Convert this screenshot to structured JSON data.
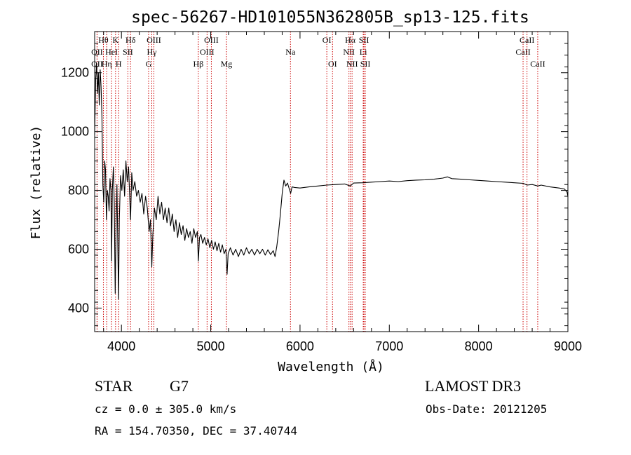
{
  "chart_data": {
    "type": "line",
    "title": "spec-56267-HD101055N362805B_sp13-125.fits",
    "xlabel": "Wavelength (Å)",
    "ylabel": "Flux (relative)",
    "xlim": [
      3700,
      9000
    ],
    "ylim": [
      320,
      1340
    ],
    "x_ticks": [
      4000,
      5000,
      6000,
      7000,
      8000,
      9000
    ],
    "y_ticks": [
      400,
      600,
      800,
      1000,
      1200
    ],
    "grid": false,
    "line_color": "#000000",
    "marker_color": "#cc0000",
    "series": [
      {
        "points": [
          [
            3700,
            990
          ],
          [
            3712,
            1180
          ],
          [
            3722,
            1230
          ],
          [
            3732,
            1130
          ],
          [
            3742,
            1200
          ],
          [
            3752,
            1090
          ],
          [
            3762,
            1210
          ],
          [
            3772,
            1150
          ],
          [
            3782,
            1050
          ],
          [
            3792,
            820
          ],
          [
            3802,
            760
          ],
          [
            3812,
            900
          ],
          [
            3822,
            870
          ],
          [
            3832,
            700
          ],
          [
            3842,
            800
          ],
          [
            3852,
            780
          ],
          [
            3862,
            730
          ],
          [
            3872,
            840
          ],
          [
            3882,
            800
          ],
          [
            3890,
            560
          ],
          [
            3898,
            800
          ],
          [
            3910,
            880
          ],
          [
            3920,
            760
          ],
          [
            3930,
            450
          ],
          [
            3940,
            680
          ],
          [
            3950,
            820
          ],
          [
            3960,
            600
          ],
          [
            3968,
            430
          ],
          [
            3976,
            700
          ],
          [
            3990,
            850
          ],
          [
            4005,
            800
          ],
          [
            4020,
            870
          ],
          [
            4035,
            780
          ],
          [
            4050,
            900
          ],
          [
            4065,
            830
          ],
          [
            4080,
            880
          ],
          [
            4095,
            760
          ],
          [
            4102,
            700
          ],
          [
            4115,
            860
          ],
          [
            4130,
            800
          ],
          [
            4150,
            830
          ],
          [
            4170,
            780
          ],
          [
            4190,
            800
          ],
          [
            4210,
            760
          ],
          [
            4230,
            790
          ],
          [
            4250,
            720
          ],
          [
            4270,
            780
          ],
          [
            4290,
            740
          ],
          [
            4310,
            660
          ],
          [
            4325,
            700
          ],
          [
            4340,
            540
          ],
          [
            4352,
            650
          ],
          [
            4370,
            740
          ],
          [
            4390,
            700
          ],
          [
            4410,
            780
          ],
          [
            4430,
            720
          ],
          [
            4450,
            760
          ],
          [
            4470,
            700
          ],
          [
            4490,
            740
          ],
          [
            4510,
            690
          ],
          [
            4530,
            740
          ],
          [
            4550,
            680
          ],
          [
            4570,
            720
          ],
          [
            4590,
            660
          ],
          [
            4610,
            700
          ],
          [
            4630,
            640
          ],
          [
            4650,
            690
          ],
          [
            4670,
            650
          ],
          [
            4690,
            680
          ],
          [
            4710,
            630
          ],
          [
            4730,
            670
          ],
          [
            4750,
            640
          ],
          [
            4770,
            660
          ],
          [
            4790,
            620
          ],
          [
            4810,
            670
          ],
          [
            4830,
            640
          ],
          [
            4850,
            660
          ],
          [
            4861,
            560
          ],
          [
            4875,
            640
          ],
          [
            4890,
            650
          ],
          [
            4910,
            620
          ],
          [
            4930,
            640
          ],
          [
            4950,
            615
          ],
          [
            4970,
            635
          ],
          [
            4990,
            605
          ],
          [
            5010,
            630
          ],
          [
            5030,
            600
          ],
          [
            5050,
            625
          ],
          [
            5070,
            595
          ],
          [
            5090,
            620
          ],
          [
            5110,
            590
          ],
          [
            5130,
            615
          ],
          [
            5150,
            585
          ],
          [
            5170,
            600
          ],
          [
            5183,
            515
          ],
          [
            5195,
            585
          ],
          [
            5220,
            605
          ],
          [
            5250,
            580
          ],
          [
            5280,
            600
          ],
          [
            5310,
            575
          ],
          [
            5340,
            600
          ],
          [
            5370,
            580
          ],
          [
            5400,
            605
          ],
          [
            5430,
            585
          ],
          [
            5460,
            600
          ],
          [
            5490,
            580
          ],
          [
            5520,
            600
          ],
          [
            5550,
            585
          ],
          [
            5580,
            600
          ],
          [
            5610,
            580
          ],
          [
            5640,
            598
          ],
          [
            5670,
            582
          ],
          [
            5700,
            595
          ],
          [
            5720,
            575
          ],
          [
            5740,
            610
          ],
          [
            5760,
            660
          ],
          [
            5780,
            720
          ],
          [
            5800,
            790
          ],
          [
            5820,
            835
          ],
          [
            5840,
            815
          ],
          [
            5860,
            825
          ],
          [
            5880,
            805
          ],
          [
            5895,
            790
          ],
          [
            5910,
            812
          ],
          [
            5940,
            810
          ],
          [
            6000,
            808
          ],
          [
            6100,
            812
          ],
          [
            6200,
            815
          ],
          [
            6300,
            818
          ],
          [
            6400,
            820
          ],
          [
            6500,
            822
          ],
          [
            6563,
            815
          ],
          [
            6600,
            825
          ],
          [
            6700,
            826
          ],
          [
            6800,
            828
          ],
          [
            6900,
            830
          ],
          [
            7000,
            832
          ],
          [
            7100,
            830
          ],
          [
            7200,
            833
          ],
          [
            7300,
            835
          ],
          [
            7400,
            836
          ],
          [
            7500,
            838
          ],
          [
            7600,
            842
          ],
          [
            7650,
            846
          ],
          [
            7700,
            840
          ],
          [
            7800,
            838
          ],
          [
            7900,
            836
          ],
          [
            8000,
            834
          ],
          [
            8100,
            832
          ],
          [
            8200,
            830
          ],
          [
            8300,
            828
          ],
          [
            8400,
            826
          ],
          [
            8500,
            824
          ],
          [
            8542,
            818
          ],
          [
            8600,
            820
          ],
          [
            8662,
            815
          ],
          [
            8700,
            818
          ],
          [
            8800,
            812
          ],
          [
            8900,
            808
          ],
          [
            8960,
            805
          ],
          [
            8990,
            795
          ],
          [
            9000,
            780
          ]
        ]
      }
    ],
    "line_markers": [
      {
        "wavelength": 3727,
        "label": "OII",
        "row": 2
      },
      {
        "wavelength": 3727,
        "label": "OII",
        "row": 3
      },
      {
        "wavelength": 3798,
        "label": "Hθ",
        "row": 1
      },
      {
        "wavelength": 3835,
        "label": "Hη",
        "row": 3
      },
      {
        "wavelength": 3889,
        "label": "HeI",
        "row": 2
      },
      {
        "wavelength": 3934,
        "label": "K",
        "row": 1
      },
      {
        "wavelength": 3969,
        "label": "H",
        "row": 3
      },
      {
        "wavelength": 4072,
        "label": "SII",
        "row": 2
      },
      {
        "wavelength": 4102,
        "label": "Hδ",
        "row": 1
      },
      {
        "wavelength": 4304,
        "label": "G",
        "row": 3
      },
      {
        "wavelength": 4340,
        "label": "Hγ",
        "row": 2
      },
      {
        "wavelength": 4363,
        "label": "OIII",
        "row": 1
      },
      {
        "wavelength": 4861,
        "label": "Hβ",
        "row": 3
      },
      {
        "wavelength": 4959,
        "label": "OIII",
        "row": 2
      },
      {
        "wavelength": 5007,
        "label": "OIII",
        "row": 1
      },
      {
        "wavelength": 5176,
        "label": "Mg",
        "row": 3
      },
      {
        "wavelength": 5893,
        "label": "Na",
        "row": 2
      },
      {
        "wavelength": 6300,
        "label": "OI",
        "row": 1
      },
      {
        "wavelength": 6364,
        "label": "OI",
        "row": 3
      },
      {
        "wavelength": 6548,
        "label": "NII",
        "row": 2
      },
      {
        "wavelength": 6563,
        "label": "Hα",
        "row": 1
      },
      {
        "wavelength": 6583,
        "label": "NII",
        "row": 3
      },
      {
        "wavelength": 6708,
        "label": "Li",
        "row": 2
      },
      {
        "wavelength": 6716,
        "label": "SII",
        "row": 1
      },
      {
        "wavelength": 6731,
        "label": "SII",
        "row": 3
      },
      {
        "wavelength": 8498,
        "label": "CaII",
        "row": 2
      },
      {
        "wavelength": 8542,
        "label": "CaII",
        "row": 1
      },
      {
        "wavelength": 8662,
        "label": "CaII",
        "row": 3
      }
    ]
  },
  "info": {
    "class": "STAR",
    "subclass": "G7",
    "survey": "LAMOST DR3",
    "cz": "cz = 0.0 ± 305.0 km/s",
    "obs_date": "Obs-Date: 20121205",
    "coords": "RA = 154.70350, DEC =  37.40744"
  }
}
